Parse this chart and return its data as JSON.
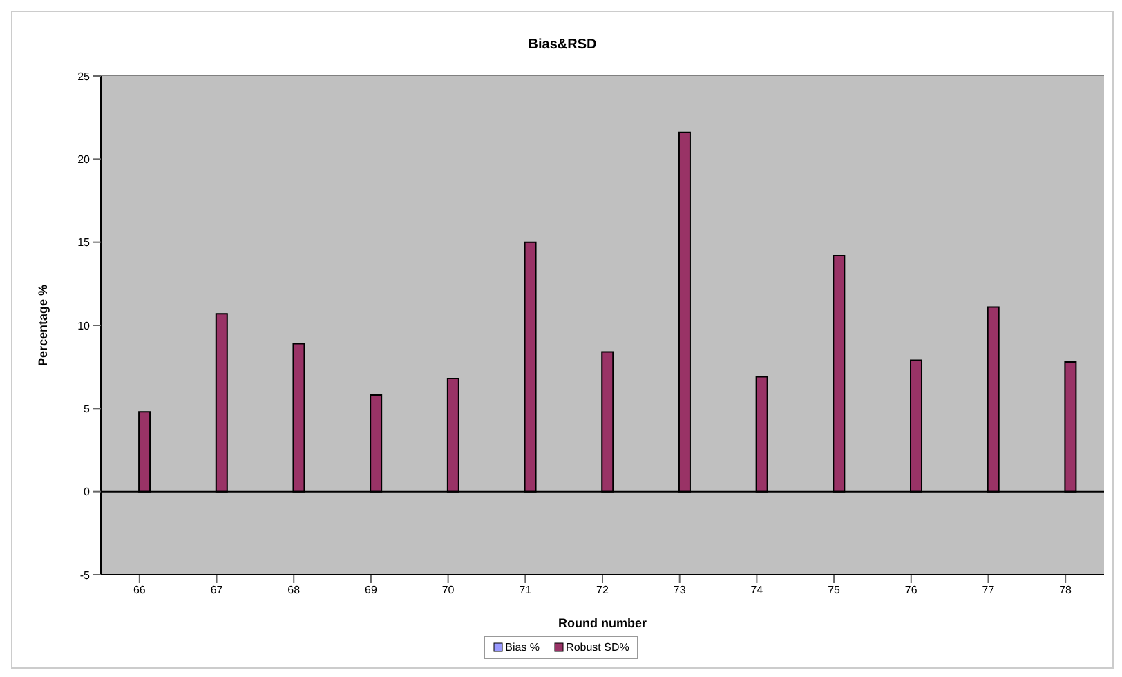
{
  "chart_data": {
    "type": "bar",
    "title": "Bias&RSD",
    "xlabel": "Round number",
    "ylabel": "Percentage %",
    "categories": [
      "66",
      "67",
      "68",
      "69",
      "70",
      "71",
      "72",
      "73",
      "74",
      "75",
      "76",
      "77",
      "78"
    ],
    "series": [
      {
        "name": "Bias %",
        "color": "#9999ff",
        "values": [
          0,
          0,
          0,
          0,
          0,
          0,
          0,
          0,
          0,
          0,
          0,
          0,
          0
        ]
      },
      {
        "name": "Robust SD%",
        "color": "#993366",
        "values": [
          4.8,
          10.7,
          8.9,
          5.8,
          6.8,
          15.0,
          8.4,
          21.6,
          6.9,
          14.2,
          7.9,
          11.1,
          7.8
        ]
      }
    ],
    "ylim": [
      -5,
      25
    ],
    "yticks": [
      -5,
      0,
      5,
      10,
      15,
      20,
      25
    ],
    "grid": "y",
    "legend": "bottom"
  }
}
